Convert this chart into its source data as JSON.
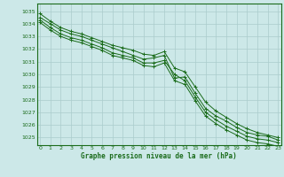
{
  "title": "Graphe pression niveau de la mer (hPa)",
  "bg_color": "#cce8e8",
  "grid_color": "#aacccc",
  "line_color": "#1a6b1a",
  "xlim": [
    -0.3,
    23.3
  ],
  "ylim": [
    1024.4,
    1035.6
  ],
  "yticks": [
    1025,
    1026,
    1027,
    1028,
    1029,
    1030,
    1031,
    1032,
    1033,
    1034,
    1035
  ],
  "xticks": [
    0,
    1,
    2,
    3,
    4,
    5,
    6,
    7,
    8,
    9,
    10,
    11,
    12,
    13,
    14,
    15,
    16,
    17,
    18,
    19,
    20,
    21,
    22,
    23
  ],
  "series": [
    [
      1034.5,
      1034.0,
      1033.5,
      1033.2,
      1033.0,
      1032.7,
      1032.4,
      1032.1,
      1031.8,
      1031.5,
      1031.2,
      1031.3,
      1031.5,
      1029.7,
      1029.8,
      1028.5,
      1027.3,
      1026.7,
      1026.3,
      1025.8,
      1025.4,
      1025.2,
      1025.1,
      1024.8
    ],
    [
      1034.8,
      1034.2,
      1033.7,
      1033.4,
      1033.2,
      1032.9,
      1032.6,
      1032.3,
      1032.1,
      1031.9,
      1031.6,
      1031.5,
      1031.8,
      1030.5,
      1030.2,
      1029.0,
      1027.8,
      1027.1,
      1026.6,
      1026.1,
      1025.7,
      1025.4,
      1025.2,
      1025.0
    ],
    [
      1034.3,
      1033.7,
      1033.2,
      1032.9,
      1032.7,
      1032.4,
      1032.1,
      1031.7,
      1031.5,
      1031.3,
      1030.9,
      1030.9,
      1031.1,
      1030.0,
      1029.5,
      1028.2,
      1027.0,
      1026.4,
      1025.9,
      1025.5,
      1025.1,
      1024.9,
      1024.8,
      1024.6
    ],
    [
      1034.1,
      1033.5,
      1033.0,
      1032.7,
      1032.5,
      1032.2,
      1031.9,
      1031.5,
      1031.3,
      1031.1,
      1030.7,
      1030.6,
      1030.9,
      1029.5,
      1029.2,
      1027.9,
      1026.7,
      1026.1,
      1025.6,
      1025.2,
      1024.8,
      1024.6,
      1024.5,
      1024.3
    ]
  ]
}
